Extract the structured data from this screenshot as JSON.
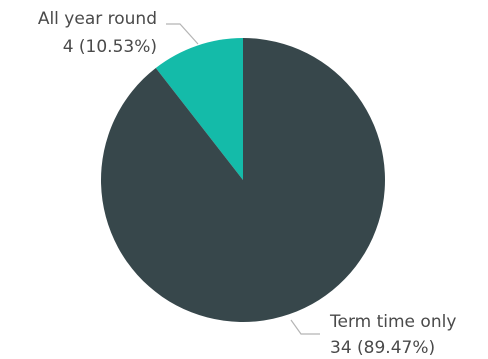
{
  "chart_data": {
    "type": "pie",
    "title": "",
    "start_angle_deg": 0,
    "direction": "counterclockwise",
    "slices": [
      {
        "label": "All year round",
        "value": 4,
        "value_text": "4 (10.53%)",
        "percent": 10.53,
        "color": "#14bba9"
      },
      {
        "label": "Term time only",
        "value": 34,
        "value_text": "34 (89.47%)",
        "percent": 89.47,
        "color": "#37474b"
      }
    ],
    "leader_line_color": "#b5b5b5",
    "legend": "none"
  }
}
